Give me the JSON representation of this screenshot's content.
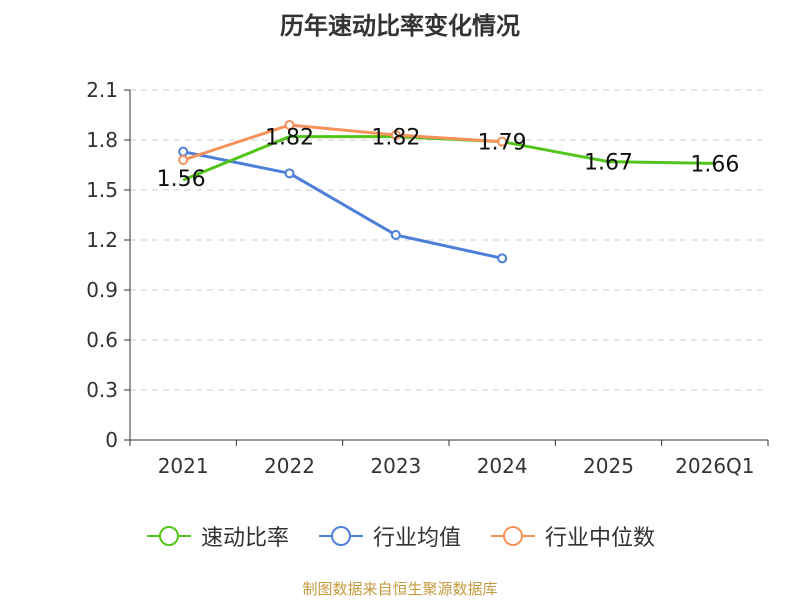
{
  "title": "历年速动比率变化情况",
  "footer": "制图数据来自恒生聚源数据库",
  "chart_data": {
    "type": "line",
    "categories": [
      "2021",
      "2022",
      "2023",
      "2024",
      "2025",
      "2026Q1"
    ],
    "ylim": [
      0,
      2.1
    ],
    "yticks": [
      0,
      0.3,
      0.6,
      0.9,
      1.2,
      1.5,
      1.8,
      2.1
    ],
    "ytick_labels": [
      "0",
      "0.3",
      "0.6",
      "0.9",
      "1.2",
      "1.5",
      "1.8",
      "2.1"
    ],
    "grid": true,
    "legend_position": "bottom",
    "series": [
      {
        "name": "速动比率",
        "color": "#52c41a",
        "values": [
          1.56,
          1.82,
          1.82,
          1.79,
          1.67,
          1.66
        ],
        "labels": [
          "1.56",
          "1.82",
          "1.82",
          "1.79",
          "1.67",
          "1.66"
        ],
        "show_markers": false
      },
      {
        "name": "行业均值",
        "color": "#4e7fd8",
        "values": [
          1.73,
          1.6,
          1.23,
          1.09,
          null,
          null
        ],
        "show_markers": true
      },
      {
        "name": "行业中位数",
        "color": "#f4925a",
        "values": [
          1.68,
          1.89,
          1.83,
          1.79,
          null,
          null
        ],
        "show_markers": true
      }
    ]
  }
}
